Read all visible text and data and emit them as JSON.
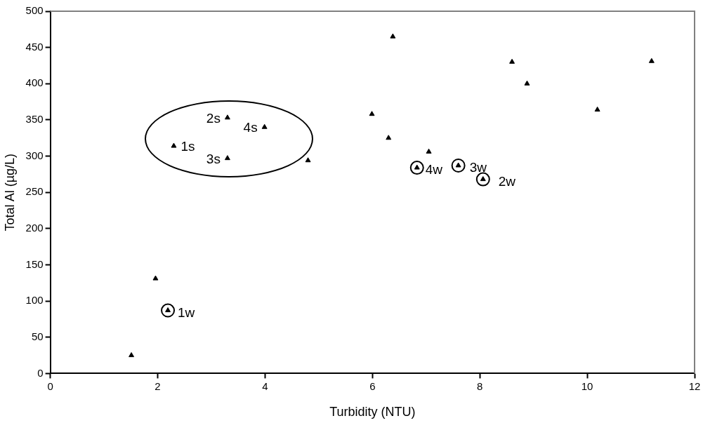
{
  "chart_data": {
    "type": "scatter",
    "xlabel": "Turbidity (NTU)",
    "ylabel": "Total Al (µg/L)",
    "x": [
      1.51,
      1.96,
      2.19,
      2.3,
      3.3,
      3.99,
      3.3,
      4.8,
      5.99,
      6.38,
      6.3,
      7.05,
      6.83,
      7.6,
      8.06,
      8.6,
      8.88,
      10.19,
      11.2
    ],
    "series": [
      {
        "color": "#000000",
        "values": [
          25,
          131,
          87,
          314,
          353,
          340,
          297,
          294,
          358,
          465,
          325,
          306,
          284,
          287,
          268,
          430,
          400,
          364,
          431
        ]
      }
    ],
    "marker": "triangle",
    "grid": false,
    "legend": false,
    "xlim": [
      0,
      12
    ],
    "xticks": [
      0,
      2,
      4,
      6,
      8,
      10,
      12
    ],
    "ylim": [
      0,
      500
    ],
    "yticks": [
      0,
      50,
      100,
      150,
      200,
      250,
      300,
      350,
      400,
      450,
      500
    ],
    "annotations": [
      {
        "text": "1s",
        "x": 2.3,
        "y": 314
      },
      {
        "text": "2s",
        "x": 3.3,
        "y": 353
      },
      {
        "text": "4s",
        "x": 3.99,
        "y": 340
      },
      {
        "text": "3s",
        "x": 3.3,
        "y": 297
      },
      {
        "text": "1w",
        "x": 2.19,
        "y": 87
      },
      {
        "text": "2w",
        "x": 8.06,
        "y": 268
      },
      {
        "text": "3w",
        "x": 7.6,
        "y": 287
      },
      {
        "text": "4w",
        "x": 6.83,
        "y": 284
      }
    ]
  }
}
